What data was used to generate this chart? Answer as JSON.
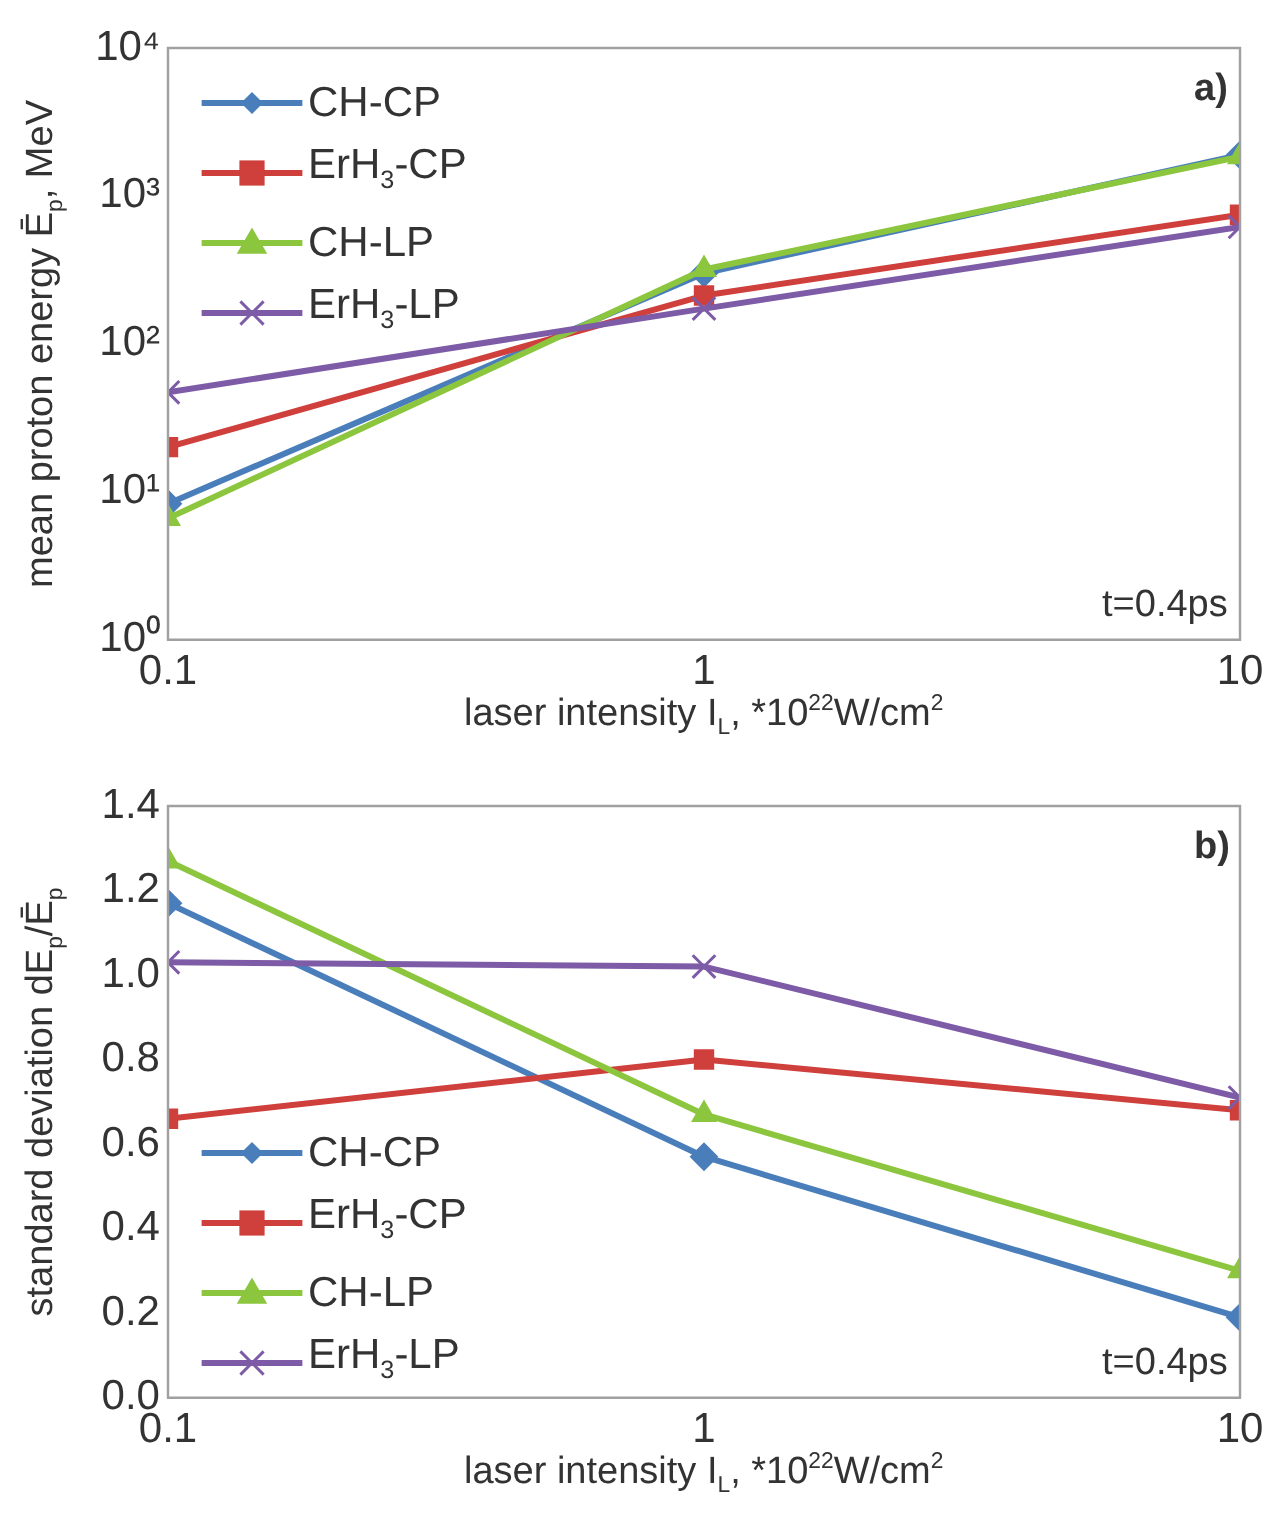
{
  "chart_data": [
    {
      "type": "line",
      "xlabel": "laser intensity I$_{L}$, *10$^{22}$W/cm$^{2}$",
      "ylabel": "mean proton energy Ē$_{p}$, MeV",
      "log": "xy",
      "grid": false,
      "legend": "top left",
      "line_style": "solid",
      "x": [
        0.1,
        1,
        10
      ],
      "xlim": [
        0.1,
        10
      ],
      "xticks": [
        0.1,
        1,
        10
      ],
      "ylim": [
        1,
        10000
      ],
      "yticks": [
        {
          "value": 1,
          "label": "10⁰"
        },
        {
          "value": 10,
          "label": "10¹"
        },
        {
          "value": 100,
          "label": "10²"
        },
        {
          "value": 1000,
          "label": "10³"
        },
        {
          "value": 10000,
          "label": "10⁴"
        }
      ],
      "annotations": [
        "a)",
        "t=0.4ps"
      ],
      "series": [
        {
          "name": "CH-CP",
          "color": "#4a7ebb",
          "marker": "diamond",
          "values": [
            8.3,
            300,
            1890
          ]
        },
        {
          "name": "ErH$_{3}$-CP",
          "color": "#cf3f3c",
          "marker": "square",
          "values": [
            20,
            212,
            746
          ]
        },
        {
          "name": "CH-LP",
          "color": "#8cc63e",
          "marker": "triangle",
          "values": [
            6.6,
            318,
            1840
          ]
        },
        {
          "name": "ErH$_{3}$-LP",
          "color": "#7d5ba6",
          "marker": "cross",
          "values": [
            47,
            173,
            617
          ]
        }
      ]
    },
    {
      "type": "line",
      "xlabel": "laser intensity I$_{L}$, *10$^{22}$W/cm$^{2}$",
      "ylabel": "standard deviation dE$_{p}$/Ē$_{p}$",
      "log": "x",
      "grid": false,
      "legend": "bottom left",
      "line_style": "solid",
      "x": [
        0.1,
        1,
        10
      ],
      "xlim": [
        0.1,
        10
      ],
      "xticks": [
        0.1,
        1,
        10
      ],
      "ylim": [
        0,
        1.4
      ],
      "yticks": [
        {
          "value": 0,
          "label": "0.0"
        },
        {
          "value": 0.2,
          "label": "0.2"
        },
        {
          "value": 0.4,
          "label": "0.4"
        },
        {
          "value": 0.6,
          "label": "0.6"
        },
        {
          "value": 0.8,
          "label": "0.8"
        },
        {
          "value": 1,
          "label": "1.0"
        },
        {
          "value": 1.2,
          "label": "1.2"
        },
        {
          "value": 1.4,
          "label": "1.4"
        }
      ],
      "annotations": [
        "b)",
        "t=0.4ps"
      ],
      "series": [
        {
          "name": "CH-CP",
          "color": "#4a7ebb",
          "marker": "diamond",
          "values": [
            1.17,
            0.57,
            0.19
          ]
        },
        {
          "name": "ErH$_{3}$-CP",
          "color": "#cf3f3c",
          "marker": "square",
          "values": [
            0.66,
            0.8,
            0.68
          ]
        },
        {
          "name": "CH-LP",
          "color": "#8cc63e",
          "marker": "triangle",
          "values": [
            1.27,
            0.67,
            0.3
          ]
        },
        {
          "name": "ErH$_{3}$-LP",
          "color": "#7d5ba6",
          "marker": "cross",
          "values": [
            1.03,
            1.02,
            0.71
          ]
        }
      ]
    }
  ]
}
